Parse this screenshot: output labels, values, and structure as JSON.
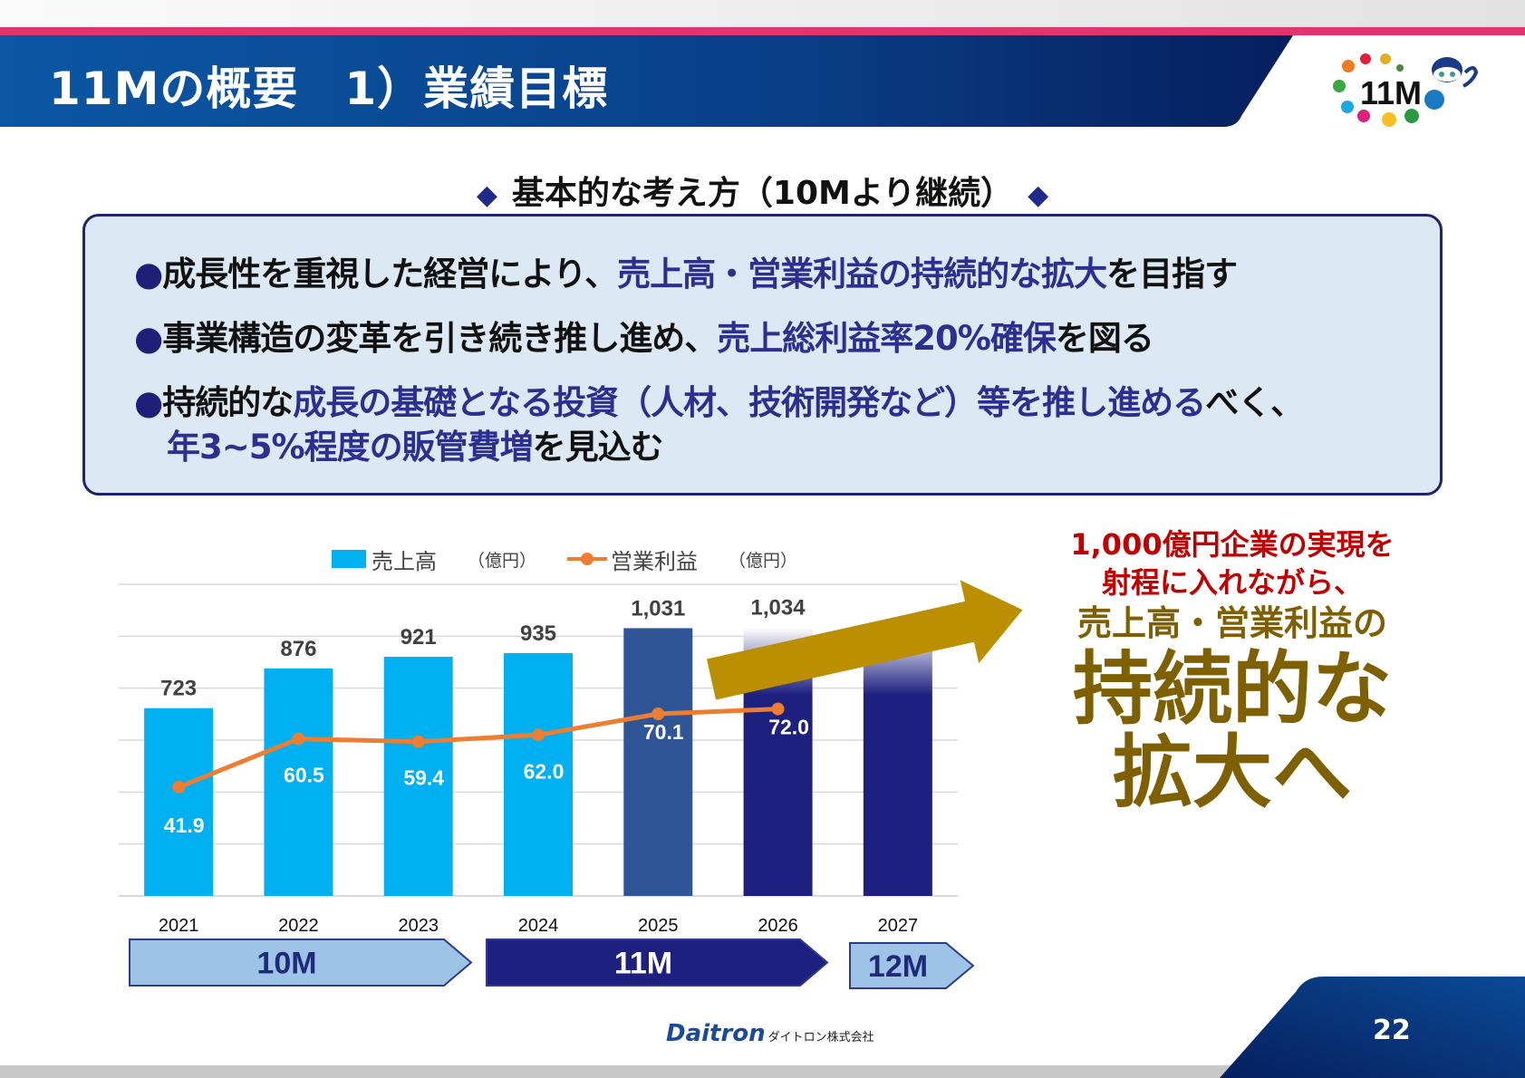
{
  "header": {
    "title": "11Mの概要　1）業績目標",
    "logo_text": "11M"
  },
  "concept": {
    "heading": "基本的な考え方（10Mより継続）",
    "diamond": "◆",
    "bullet": "●",
    "bullets": [
      {
        "plain1": "成長性を重視した経営により、",
        "emph": "売上高・営業利益の持続的な拡大",
        "plain2": "を目指す"
      },
      {
        "plain1": "事業構造の変革を引き続き推し進め、",
        "emph": "売上総利益率20%確保",
        "plain2": "を図る"
      },
      {
        "plain1": "持続的な",
        "emph": "成長の基礎となる投資（人材、技術開発など）等を推し進める",
        "plain2": "べく、",
        "emph2": "年3~5%程度の販管費増",
        "plain3": "を見込む"
      }
    ]
  },
  "chart_data": {
    "type": "bar",
    "categories": [
      "2021",
      "2022",
      "2023",
      "2024",
      "2025",
      "2026",
      "2027"
    ],
    "series": [
      {
        "name": "売上高",
        "unit": "（億円）",
        "type": "bar",
        "values": [
          723,
          876,
          921,
          935,
          1031,
          1034,
          null
        ],
        "labels": [
          "723",
          "876",
          "921",
          "935",
          "1,031",
          "1,034",
          ""
        ]
      },
      {
        "name": "営業利益",
        "unit": "（億円）",
        "type": "line",
        "values": [
          41.9,
          60.5,
          59.4,
          62.0,
          70.1,
          72.0,
          null
        ],
        "labels": [
          "41.9",
          "60.5",
          "59.4",
          "62.0",
          "70.1",
          "72.0",
          ""
        ]
      }
    ],
    "ylim": [
      0,
      1200
    ],
    "y2lim": [
      0,
      120
    ],
    "grid": true,
    "legend": "top",
    "colors": {
      "actual": "#00b0f0",
      "y2025": "#2f5597",
      "plan": "#1e2080",
      "line": "#ed7d31",
      "growth_arrow": "#bb8f00"
    },
    "phases": [
      {
        "label": "10M",
        "years": [
          "2021",
          "2023"
        ],
        "fill": "#9dc3e6",
        "text": "#1f2a7a"
      },
      {
        "label": "11M",
        "years": [
          "2024",
          "2026"
        ],
        "fill": "#1e2080",
        "text": "#ffffff"
      },
      {
        "label": "12M",
        "years": [
          "2027"
        ],
        "fill": "#9dc3e6",
        "text": "#1f2a7a"
      }
    ]
  },
  "message": {
    "line1": "1,000億円企業の実現を",
    "line2": "射程に入れながら、",
    "line3": "売上高・営業利益の",
    "line4": "持続的な",
    "line5": "拡大へ"
  },
  "footer": {
    "company_logo": "Daitron",
    "company_name": "ダイトロン株式会社",
    "page_number": "22"
  },
  "colors": {
    "header_blue": "#0b4a96",
    "accent_pink": "#e2356e",
    "emphasis": "#2b2f8f",
    "message_red": "#c00000",
    "message_gold": "#7f6000"
  }
}
